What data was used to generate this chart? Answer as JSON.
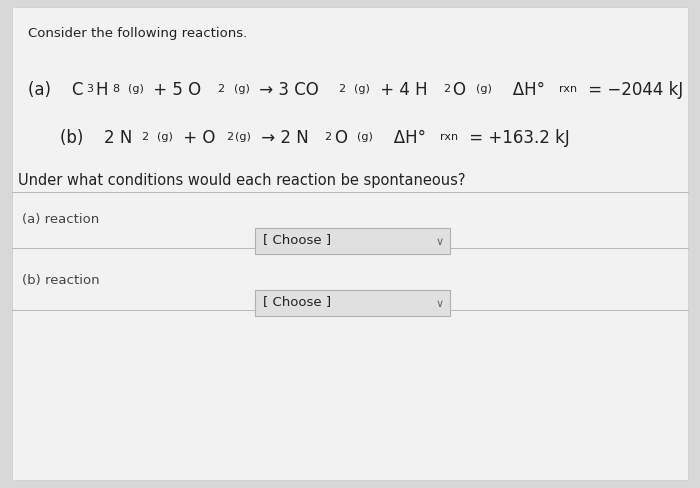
{
  "bg_color": "#d8d8d8",
  "inner_bg_color": "#f2f2f2",
  "title_text": "Consider the following reactions.",
  "question_text": "Under what conditions would each reaction be spontaneous?",
  "row_a_label": "(a) reaction",
  "row_b_label": "(b) reaction",
  "choose_text": "[ Choose ]",
  "divider_color": "#b8b8b8",
  "dropdown_bg": "#e0e0e0",
  "dropdown_border": "#b0b0b0",
  "text_color": "#222222",
  "label_color": "#444444",
  "font_size_title": 9.5,
  "font_size_reaction": 12.0,
  "font_size_sub": 8.0,
  "font_size_question": 10.5,
  "font_size_row": 9.5,
  "font_size_choose": 9.5,
  "font_size_arrow": 8.0
}
